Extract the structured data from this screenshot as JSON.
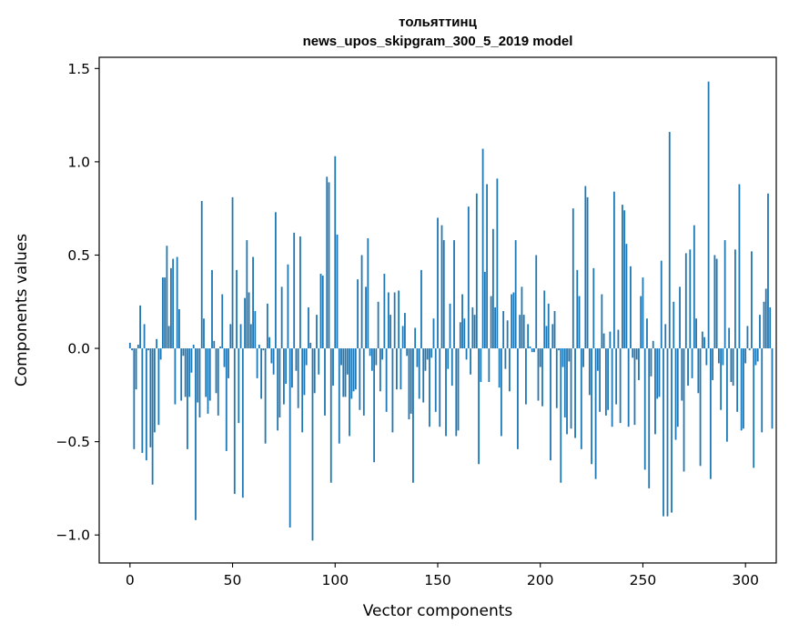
{
  "chart_data": {
    "type": "bar",
    "title": "тольяттинц",
    "subtitle": "news_upos_skipgram_300_5_2019 model",
    "xlabel": "Vector components",
    "ylabel": "Components values",
    "xlim": [
      -15,
      315
    ],
    "ylim": [
      -1.15,
      1.56
    ],
    "x_ticks": [
      0,
      50,
      100,
      150,
      200,
      250,
      300
    ],
    "x_tick_labels": [
      "0",
      "50",
      "100",
      "150",
      "200",
      "250",
      "300"
    ],
    "y_ticks": [
      -1.0,
      -0.5,
      0.0,
      0.5,
      1.0,
      1.5
    ],
    "y_tick_labels": [
      "−1.0",
      "−0.5",
      "0.0",
      "0.5",
      "1.0",
      "1.5"
    ],
    "grid": false,
    "bar_color": "#1f77b4",
    "values": [
      0.03,
      -0.01,
      -0.54,
      -0.22,
      0.02,
      0.23,
      -0.56,
      0.13,
      -0.6,
      -0.01,
      -0.53,
      -0.73,
      -0.45,
      0.05,
      -0.41,
      -0.06,
      0.38,
      0.38,
      0.55,
      0.12,
      0.43,
      0.48,
      -0.3,
      0.49,
      0.21,
      -0.28,
      -0.04,
      -0.26,
      -0.54,
      -0.26,
      -0.13,
      0.02,
      -0.92,
      -0.29,
      -0.37,
      0.79,
      0.16,
      -0.26,
      -0.35,
      -0.28,
      0.42,
      0.04,
      -0.24,
      -0.36,
      0.01,
      0.29,
      -0.1,
      -0.55,
      -0.16,
      0.13,
      0.81,
      -0.78,
      0.42,
      -0.4,
      0.13,
      -0.8,
      0.27,
      0.58,
      0.3,
      0.13,
      0.49,
      0.2,
      -0.16,
      0.02,
      -0.27,
      -0.01,
      -0.51,
      0.24,
      0.06,
      -0.08,
      -0.14,
      0.73,
      -0.44,
      -0.37,
      0.33,
      -0.3,
      -0.19,
      0.45,
      -0.96,
      -0.21,
      0.62,
      -0.12,
      -0.32,
      0.6,
      -0.45,
      -0.25,
      -0.09,
      0.22,
      0.03,
      -1.03,
      -0.24,
      0.18,
      -0.14,
      0.4,
      0.39,
      -0.36,
      0.92,
      0.89,
      -0.72,
      -0.2,
      1.03,
      0.61,
      -0.51,
      -0.09,
      -0.26,
      -0.26,
      -0.14,
      -0.47,
      -0.27,
      -0.23,
      -0.22,
      0.37,
      -0.33,
      0.5,
      -0.36,
      0.33,
      0.59,
      -0.04,
      -0.12,
      -0.61,
      -0.09,
      0.25,
      -0.23,
      -0.06,
      0.4,
      -0.34,
      0.3,
      0.18,
      -0.45,
      0.3,
      -0.22,
      0.31,
      -0.22,
      0.12,
      0.19,
      -0.04,
      -0.38,
      -0.35,
      -0.72,
      0.11,
      -0.1,
      -0.27,
      0.42,
      -0.29,
      -0.12,
      -0.06,
      -0.42,
      -0.05,
      0.16,
      -0.34,
      0.7,
      -0.42,
      0.66,
      0.58,
      -0.47,
      -0.11,
      0.24,
      -0.2,
      0.58,
      -0.47,
      -0.44,
      0.14,
      0.29,
      0.16,
      -0.06,
      0.76,
      -0.14,
      0.22,
      0.18,
      0.83,
      -0.62,
      -0.18,
      1.07,
      0.41,
      0.88,
      -0.18,
      0.28,
      0.64,
      0.22,
      0.91,
      -0.21,
      -0.47,
      0.2,
      -0.11,
      0.15,
      -0.23,
      0.29,
      0.3,
      0.58,
      -0.54,
      0.18,
      0.33,
      0.18,
      -0.3,
      0.13,
      0.01,
      -0.02,
      -0.02,
      0.5,
      -0.28,
      -0.1,
      -0.31,
      0.31,
      0.12,
      0.24,
      -0.6,
      0.13,
      0.2,
      -0.32,
      -0.01,
      -0.72,
      -0.1,
      -0.37,
      -0.46,
      -0.07,
      -0.43,
      0.75,
      -0.48,
      0.42,
      0.28,
      -0.54,
      -0.1,
      0.87,
      0.81,
      -0.25,
      -0.62,
      0.43,
      -0.7,
      -0.12,
      -0.34,
      0.29,
      0.08,
      -0.36,
      -0.33,
      0.09,
      -0.42,
      0.84,
      -0.3,
      0.1,
      -0.4,
      0.77,
      0.74,
      0.56,
      -0.42,
      0.44,
      -0.05,
      -0.41,
      -0.06,
      -0.17,
      0.28,
      0.38,
      -0.65,
      0.16,
      -0.75,
      -0.15,
      0.04,
      -0.46,
      -0.27,
      -0.26,
      0.47,
      -0.9,
      0.13,
      -0.9,
      1.16,
      -0.88,
      0.25,
      -0.49,
      -0.42,
      0.33,
      -0.28,
      -0.66,
      0.51,
      -0.2,
      0.53,
      -0.16,
      0.66,
      0.16,
      -0.24,
      -0.63,
      0.09,
      0.06,
      -0.09,
      1.43,
      -0.7,
      -0.17,
      0.5,
      0.48,
      -0.08,
      -0.33,
      -0.09,
      0.58,
      -0.5,
      0.11,
      -0.18,
      -0.2,
      0.53,
      -0.34,
      0.88,
      -0.44,
      -0.43,
      -0.08,
      0.12,
      -0.01,
      0.52,
      -0.64,
      -0.09,
      -0.07,
      0.18,
      -0.45,
      0.25,
      0.32,
      0.83,
      0.22,
      -0.43
    ]
  }
}
